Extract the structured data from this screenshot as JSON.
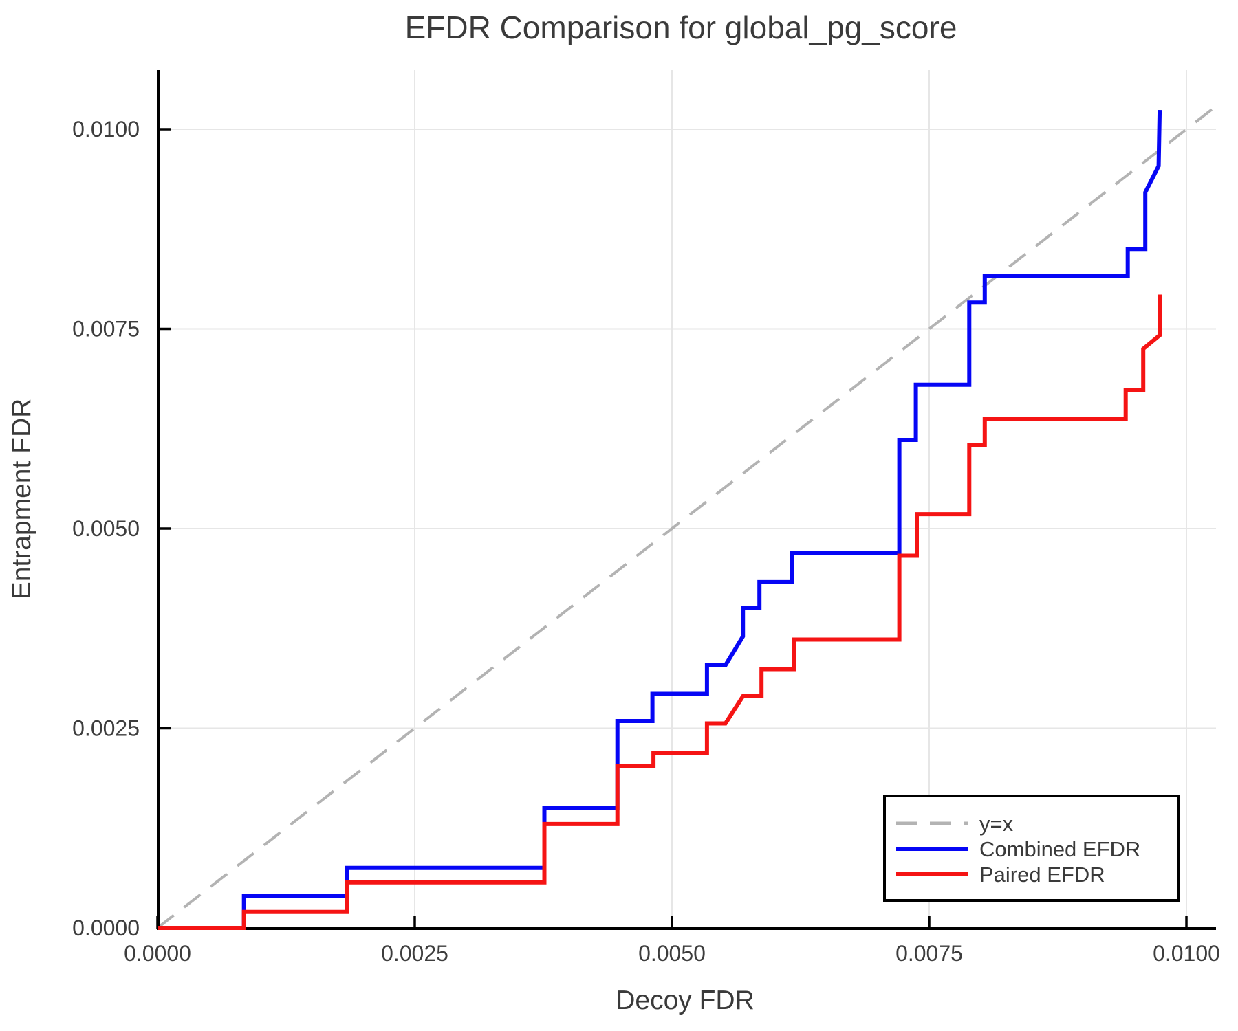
{
  "title": "EFDR Comparison for global_pg_score",
  "axes": {
    "x_label": "Decoy FDR",
    "y_label": "Entrapment FDR",
    "x_tick_labels": [
      "0.0000",
      "0.0025",
      "0.0050",
      "0.0075",
      "0.0100"
    ],
    "y_tick_labels": [
      "0.0000",
      "0.0025",
      "0.0050",
      "0.0075",
      "0.0100"
    ]
  },
  "legend": {
    "items": [
      {
        "label": "y=x",
        "style": "dashed",
        "color": "#b3b3b3"
      },
      {
        "label": "Combined EFDR",
        "style": "solid",
        "color": "#0606f5"
      },
      {
        "label": "Paired EFDR",
        "style": "solid",
        "color": "#f51414"
      }
    ]
  },
  "colors": {
    "grid": "#e6e6e6",
    "axis": "#000000",
    "text": "#3a3a3a",
    "identity_line": "#b3b3b3",
    "combined": "#0606f5",
    "paired": "#f51414"
  },
  "chart_data": {
    "type": "line",
    "subtype": "step",
    "title": "EFDR Comparison for global_pg_score",
    "xlabel": "Decoy FDR",
    "ylabel": "Entrapment FDR",
    "xlim": [
      0,
      0.0103
    ],
    "ylim": [
      0,
      0.01075
    ],
    "x_tick_values": [
      0,
      0.0025,
      0.005,
      0.0075,
      0.01
    ],
    "y_tick_values": [
      0,
      0.0025,
      0.005,
      0.0075,
      0.01
    ],
    "grid": true,
    "legend_position": "lower right",
    "identity_line": {
      "name": "y=x",
      "from": [
        0,
        0
      ],
      "to": [
        0.010287,
        0.010287
      ]
    },
    "series": [
      {
        "name": "Combined EFDR",
        "color": "#0606f5",
        "points": [
          [
            0.0,
            0.0
          ],
          [
            0.00084,
            0.0
          ],
          [
            0.00084,
            0.0004
          ],
          [
            0.00184,
            0.0004
          ],
          [
            0.00184,
            0.00075
          ],
          [
            0.00376,
            0.00075
          ],
          [
            0.00376,
            0.0015
          ],
          [
            0.00447,
            0.0015
          ],
          [
            0.00447,
            0.00259
          ],
          [
            0.00481,
            0.00259
          ],
          [
            0.00481,
            0.00293
          ],
          [
            0.00534,
            0.00293
          ],
          [
            0.00534,
            0.00329
          ],
          [
            0.00552,
            0.00329
          ],
          [
            0.00569,
            0.00365
          ],
          [
            0.00569,
            0.00401
          ],
          [
            0.00585,
            0.00401
          ],
          [
            0.00585,
            0.00433
          ],
          [
            0.00617,
            0.00433
          ],
          [
            0.00617,
            0.00469
          ],
          [
            0.00721,
            0.00469
          ],
          [
            0.00721,
            0.00611
          ],
          [
            0.00737,
            0.00611
          ],
          [
            0.00737,
            0.0068
          ],
          [
            0.00789,
            0.0068
          ],
          [
            0.00789,
            0.00783
          ],
          [
            0.00804,
            0.00783
          ],
          [
            0.00804,
            0.00816
          ],
          [
            0.00943,
            0.00816
          ],
          [
            0.00943,
            0.0085
          ],
          [
            0.0096,
            0.0085
          ],
          [
            0.0096,
            0.00921
          ],
          [
            0.00973,
            0.00954
          ],
          [
            0.00974,
            0.01024
          ]
        ]
      },
      {
        "name": "Paired EFDR",
        "color": "#f51414",
        "points": [
          [
            0.0,
            0.0
          ],
          [
            0.00084,
            0.0
          ],
          [
            0.00084,
            0.0002
          ],
          [
            0.00184,
            0.0002
          ],
          [
            0.00184,
            0.00057
          ],
          [
            0.00376,
            0.00057
          ],
          [
            0.00376,
            0.0013
          ],
          [
            0.00447,
            0.0013
          ],
          [
            0.00447,
            0.00203
          ],
          [
            0.00482,
            0.00203
          ],
          [
            0.00482,
            0.00219
          ],
          [
            0.00534,
            0.00219
          ],
          [
            0.00534,
            0.00256
          ],
          [
            0.00552,
            0.00256
          ],
          [
            0.00569,
            0.0029
          ],
          [
            0.00587,
            0.0029
          ],
          [
            0.00587,
            0.00324
          ],
          [
            0.00619,
            0.00324
          ],
          [
            0.00619,
            0.00361
          ],
          [
            0.00721,
            0.00361
          ],
          [
            0.00721,
            0.00466
          ],
          [
            0.00738,
            0.00466
          ],
          [
            0.00738,
            0.00518
          ],
          [
            0.00789,
            0.00518
          ],
          [
            0.00789,
            0.00605
          ],
          [
            0.00804,
            0.00605
          ],
          [
            0.00804,
            0.00637
          ],
          [
            0.00941,
            0.00637
          ],
          [
            0.00941,
            0.00673
          ],
          [
            0.00958,
            0.00673
          ],
          [
            0.00958,
            0.00725
          ],
          [
            0.00974,
            0.00742
          ],
          [
            0.00974,
            0.00793
          ]
        ]
      }
    ]
  }
}
